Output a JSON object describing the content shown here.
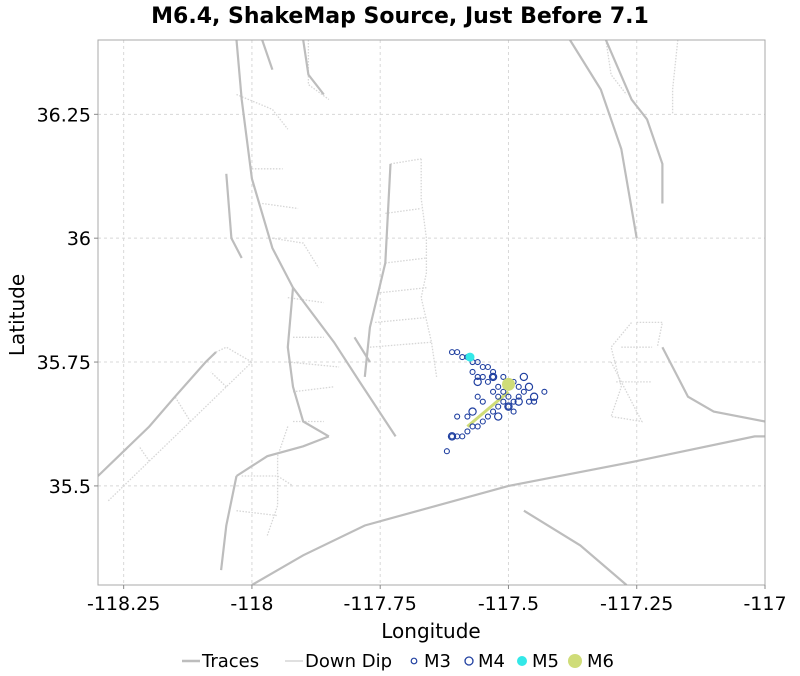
{
  "chart_data": {
    "type": "scatter",
    "title": "M6.4, ShakeMap Source, Just Before 7.1",
    "xlabel": "Longitude",
    "ylabel": "Latitude",
    "xlim": [
      -118.3,
      -117.0
    ],
    "ylim": [
      35.3,
      36.4
    ],
    "x_ticks": [
      -118.25,
      -118,
      -117.75,
      -117.5,
      -117.25,
      -117
    ],
    "x_tick_labels": [
      "-118.25",
      "-118",
      "-117.75",
      "-117.5",
      "-117.25",
      "-117"
    ],
    "y_ticks": [
      35.5,
      35.75,
      36,
      36.25
    ],
    "y_tick_labels": [
      "35.5",
      "35.75",
      "36",
      "36.25"
    ],
    "grid": true,
    "legend_position": "bottom",
    "legend": [
      {
        "label": "Traces",
        "symbol": "line",
        "color": "#bdbdbd"
      },
      {
        "label": "Down Dip",
        "symbol": "line",
        "color": "#e0e0e0"
      },
      {
        "label": "M3",
        "symbol": "open-circle-small",
        "color": "#1f3fa0"
      },
      {
        "label": "M4",
        "symbol": "open-circle",
        "color": "#1f3fa0"
      },
      {
        "label": "M5",
        "symbol": "filled-circle",
        "color": "#33e8e8"
      },
      {
        "label": "M6",
        "symbol": "filled-circle-large",
        "color": "#cfdc78"
      }
    ],
    "colors": {
      "traces": "#bdbdbd",
      "down_dip": "#d6d6d6",
      "m3": "#1f3fa0",
      "m4": "#1f3fa0",
      "m5": "#33e8e8",
      "m6": "#cfdc78",
      "grid": "#d8d8d8"
    },
    "series": [
      {
        "name": "Traces",
        "type": "lines",
        "lines": [
          [
            [
              -118.03,
              36.4
            ],
            [
              -118.02,
              36.28
            ],
            [
              -118.0,
              36.12
            ],
            [
              -117.96,
              35.98
            ],
            [
              -117.92,
              35.9
            ],
            [
              -117.84,
              35.79
            ],
            [
              -117.79,
              35.71
            ],
            [
              -117.72,
              35.6
            ]
          ],
          [
            [
              -117.98,
              36.4
            ],
            [
              -117.96,
              36.34
            ]
          ],
          [
            [
              -117.9,
              36.4
            ],
            [
              -117.89,
              36.33
            ],
            [
              -117.86,
              36.29
            ]
          ],
          [
            [
              -117.73,
              36.15
            ],
            [
              -117.74,
              35.95
            ],
            [
              -117.77,
              35.82
            ],
            [
              -117.78,
              35.72
            ]
          ],
          [
            [
              -117.8,
              35.8
            ],
            [
              -117.77,
              35.75
            ]
          ],
          [
            [
              -117.85,
              35.6
            ],
            [
              -117.9,
              35.58
            ],
            [
              -117.97,
              35.56
            ],
            [
              -118.03,
              35.52
            ]
          ],
          [
            [
              -118.03,
              35.52
            ],
            [
              -118.05,
              35.42
            ],
            [
              -118.06,
              35.33
            ]
          ],
          [
            [
              -118.05,
              36.13
            ],
            [
              -118.04,
              36.0
            ],
            [
              -118.02,
              35.96
            ]
          ],
          [
            [
              -117.92,
              35.9
            ],
            [
              -117.93,
              35.78
            ],
            [
              -117.92,
              35.7
            ],
            [
              -117.9,
              35.63
            ],
            [
              -117.85,
              35.6
            ]
          ],
          [
            [
              -118.3,
              35.52
            ],
            [
              -118.2,
              35.62
            ],
            [
              -118.15,
              35.68
            ],
            [
              -118.09,
              35.75
            ],
            [
              -118.07,
              35.77
            ]
          ],
          [
            [
              -118.0,
              35.3
            ],
            [
              -117.9,
              35.36
            ],
            [
              -117.78,
              35.42
            ],
            [
              -117.5,
              35.5
            ],
            [
              -117.25,
              35.55
            ],
            [
              -117.02,
              35.6
            ],
            [
              -117.0,
              35.6
            ]
          ],
          [
            [
              -117.31,
              36.4
            ],
            [
              -117.26,
              36.28
            ],
            [
              -117.23,
              36.24
            ],
            [
              -117.2,
              36.15
            ],
            [
              -117.2,
              36.07
            ]
          ],
          [
            [
              -117.38,
              36.4
            ],
            [
              -117.32,
              36.3
            ],
            [
              -117.28,
              36.18
            ],
            [
              -117.25,
              36.0
            ]
          ],
          [
            [
              -117.47,
              35.45
            ],
            [
              -117.36,
              35.38
            ],
            [
              -117.27,
              35.3
            ]
          ],
          [
            [
              -117.2,
              35.78
            ],
            [
              -117.15,
              35.68
            ],
            [
              -117.1,
              35.65
            ],
            [
              -117.0,
              35.63
            ]
          ]
        ]
      },
      {
        "name": "Down Dip",
        "type": "lines",
        "lines": [
          [
            [
              -117.89,
              36.4
            ],
            [
              -117.89,
              36.31
            ],
            [
              -117.85,
              36.28
            ]
          ],
          [
            [
              -117.67,
              36.16
            ],
            [
              -117.67,
              36.08
            ],
            [
              -117.66,
              36.0
            ],
            [
              -117.66,
              35.93
            ],
            [
              -117.67,
              35.88
            ],
            [
              -117.65,
              35.79
            ],
            [
              -117.64,
              35.72
            ]
          ],
          [
            [
              -117.73,
              36.15
            ],
            [
              -117.67,
              36.16
            ]
          ],
          [
            [
              -117.74,
              36.05
            ],
            [
              -117.67,
              36.06
            ]
          ],
          [
            [
              -117.74,
              35.95
            ],
            [
              -117.66,
              35.96
            ]
          ],
          [
            [
              -117.75,
              35.89
            ],
            [
              -117.66,
              35.9
            ]
          ],
          [
            [
              -117.76,
              35.83
            ],
            [
              -117.66,
              35.84
            ]
          ],
          [
            [
              -117.77,
              35.78
            ],
            [
              -117.65,
              35.79
            ]
          ],
          [
            [
              -118.03,
              36.29
            ],
            [
              -117.96,
              36.26
            ],
            [
              -117.93,
              36.22
            ]
          ],
          [
            [
              -118.0,
              36.14
            ],
            [
              -117.94,
              36.14
            ]
          ],
          [
            [
              -117.98,
              36.07
            ],
            [
              -117.91,
              36.06
            ]
          ],
          [
            [
              -117.96,
              36.0
            ],
            [
              -117.9,
              35.99
            ],
            [
              -117.87,
              35.94
            ]
          ],
          [
            [
              -117.93,
              35.88
            ],
            [
              -117.86,
              35.87
            ]
          ],
          [
            [
              -117.92,
              35.8
            ],
            [
              -117.86,
              35.8
            ]
          ],
          [
            [
              -117.93,
              35.75
            ],
            [
              -117.83,
              35.74
            ]
          ],
          [
            [
              -117.92,
              35.69
            ],
            [
              -117.84,
              35.7
            ]
          ],
          [
            [
              -117.92,
              35.63
            ],
            [
              -117.86,
              35.63
            ]
          ],
          [
            [
              -118.02,
              35.52
            ],
            [
              -117.95,
              35.52
            ],
            [
              -117.92,
              35.5
            ]
          ],
          [
            [
              -118.03,
              35.45
            ],
            [
              -117.95,
              35.44
            ]
          ],
          [
            [
              -117.93,
              35.62
            ],
            [
              -117.95,
              35.56
            ],
            [
              -117.95,
              35.46
            ],
            [
              -117.97,
              35.4
            ]
          ],
          [
            [
              -117.25,
              35.83
            ],
            [
              -117.2,
              35.83
            ],
            [
              -117.21,
              35.78
            ]
          ],
          [
            [
              -117.28,
              35.78
            ],
            [
              -117.22,
              35.78
            ]
          ],
          [
            [
              -117.29,
              35.71
            ],
            [
              -117.22,
              35.71
            ]
          ],
          [
            [
              -117.3,
              35.75
            ],
            [
              -117.25,
              35.65
            ],
            [
              -117.24,
              35.63
            ],
            [
              -117.3,
              35.64
            ],
            [
              -117.28,
              35.7
            ],
            [
              -117.3,
              35.78
            ],
            [
              -117.26,
              35.83
            ]
          ],
          [
            [
              -117.17,
              36.4
            ],
            [
              -117.18,
              36.3
            ],
            [
              -117.18,
              36.25
            ]
          ],
          [
            [
              -117.31,
              36.4
            ],
            [
              -117.3,
              36.33
            ],
            [
              -117.27,
              36.29
            ]
          ],
          [
            [
              -118.28,
              35.47
            ],
            [
              -118.2,
              35.55
            ],
            [
              -118.12,
              35.63
            ],
            [
              -118.05,
              35.7
            ],
            [
              -118.0,
              35.75
            ]
          ],
          [
            [
              -118.05,
              35.7
            ],
            [
              -118.08,
              35.73
            ]
          ],
          [
            [
              -118.12,
              35.63
            ],
            [
              -118.15,
              35.68
            ]
          ],
          [
            [
              -118.2,
              35.55
            ],
            [
              -118.22,
              35.58
            ]
          ],
          [
            [
              -118.07,
              35.77
            ],
            [
              -118.05,
              35.78
            ],
            [
              -118.0,
              35.75
            ]
          ]
        ]
      },
      {
        "name": "M3",
        "type": "scatter",
        "points": [
          [
            -117.61,
            35.77
          ],
          [
            -117.6,
            35.77
          ],
          [
            -117.59,
            35.76
          ],
          [
            -117.58,
            35.76
          ],
          [
            -117.57,
            35.75
          ],
          [
            -117.56,
            35.75
          ],
          [
            -117.55,
            35.74
          ],
          [
            -117.57,
            35.73
          ],
          [
            -117.56,
            35.72
          ],
          [
            -117.55,
            35.72
          ],
          [
            -117.54,
            35.71
          ],
          [
            -117.53,
            35.72
          ],
          [
            -117.52,
            35.7
          ],
          [
            -117.51,
            35.69
          ],
          [
            -117.5,
            35.7
          ],
          [
            -117.49,
            35.71
          ],
          [
            -117.48,
            35.7
          ],
          [
            -117.47,
            35.69
          ],
          [
            -117.48,
            35.68
          ],
          [
            -117.49,
            35.67
          ],
          [
            -117.5,
            35.68
          ],
          [
            -117.51,
            35.67
          ],
          [
            -117.52,
            35.66
          ],
          [
            -117.53,
            35.65
          ],
          [
            -117.54,
            35.64
          ],
          [
            -117.55,
            35.63
          ],
          [
            -117.56,
            35.62
          ],
          [
            -117.57,
            35.62
          ],
          [
            -117.58,
            35.61
          ],
          [
            -117.59,
            35.6
          ],
          [
            -117.6,
            35.6
          ],
          [
            -117.61,
            35.6
          ],
          [
            -117.62,
            35.57
          ],
          [
            -117.6,
            35.64
          ],
          [
            -117.58,
            35.64
          ],
          [
            -117.56,
            35.68
          ],
          [
            -117.55,
            35.67
          ],
          [
            -117.53,
            35.69
          ],
          [
            -117.52,
            35.68
          ],
          [
            -117.51,
            35.72
          ],
          [
            -117.46,
            35.67
          ],
          [
            -117.45,
            35.67
          ],
          [
            -117.43,
            35.69
          ],
          [
            -117.54,
            35.74
          ],
          [
            -117.53,
            35.73
          ],
          [
            -117.5,
            35.66
          ],
          [
            -117.49,
            35.65
          ]
        ]
      },
      {
        "name": "M4",
        "type": "scatter",
        "points": [
          [
            -117.53,
            35.72
          ],
          [
            -117.47,
            35.72
          ],
          [
            -117.46,
            35.7
          ],
          [
            -117.5,
            35.66
          ],
          [
            -117.45,
            35.68
          ],
          [
            -117.57,
            35.65
          ],
          [
            -117.56,
            35.71
          ],
          [
            -117.48,
            35.67
          ],
          [
            -117.52,
            35.64
          ],
          [
            -117.61,
            35.6
          ]
        ]
      },
      {
        "name": "M5",
        "type": "scatter",
        "points": [
          [
            -117.575,
            35.76
          ]
        ]
      },
      {
        "name": "M6",
        "type": "scatter",
        "points": [
          [
            -117.5,
            35.705
          ]
        ],
        "rupture": [
          [
            -117.58,
            35.62
          ],
          [
            -117.5,
            35.69
          ]
        ]
      }
    ]
  }
}
